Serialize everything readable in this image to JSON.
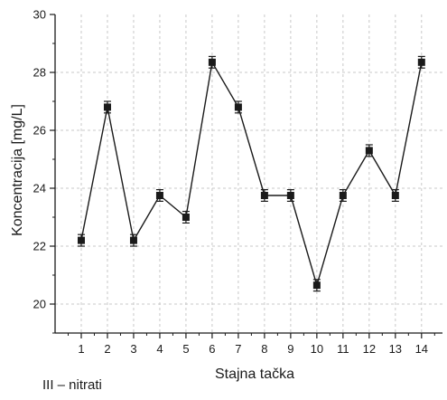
{
  "caption": "III – nitrati",
  "chart_data": {
    "type": "line",
    "title": "",
    "xlabel": "Stajna tačka",
    "ylabel": "Koncentracija [mg/L]",
    "xlim": [
      0,
      14.8
    ],
    "ylim": [
      19,
      30
    ],
    "x_ticks": [
      1,
      2,
      3,
      4,
      5,
      6,
      7,
      8,
      9,
      10,
      11,
      12,
      13,
      14
    ],
    "y_ticks": [
      20,
      22,
      24,
      26,
      28,
      30
    ],
    "grid": true,
    "marker": "square",
    "error_bars": true,
    "colors": {
      "line": "#1a1a1a",
      "marker": "#1a1a1a",
      "grid": "#c8c8c8"
    },
    "series": [
      {
        "x": [
          1,
          2,
          3,
          4,
          5,
          6,
          7,
          8,
          9,
          10,
          11,
          12,
          13,
          14
        ],
        "values": [
          22.2,
          26.8,
          22.2,
          23.75,
          23.0,
          28.35,
          26.8,
          23.75,
          23.75,
          20.65,
          23.75,
          25.3,
          23.75,
          28.35
        ],
        "errors": [
          0.2,
          0.2,
          0.2,
          0.2,
          0.2,
          0.2,
          0.2,
          0.2,
          0.2,
          0.2,
          0.2,
          0.2,
          0.2,
          0.2
        ]
      }
    ]
  }
}
